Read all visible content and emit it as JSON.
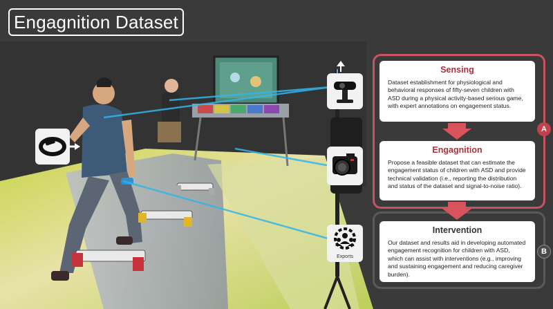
{
  "title": "Engagnition Dataset",
  "icons": {
    "wearable": "wristband-icon",
    "webcam": "webcam-icon",
    "camera": "camera-icon",
    "experts": "experts-icon",
    "experts_label": "Exports"
  },
  "panels": [
    {
      "heading": "Sensing",
      "text": "Dataset establishment for physiological and behavioral responses of fifty-seven children with ASD during a physical activity-based serious game, with expert annotations on engagement status.",
      "color": "#a8333d"
    },
    {
      "heading": "Engagnition",
      "text": "Propose a feasible dataset that can estimate the engagement status of children with ASD and provide technical validation (i.e., reporting the distribution and status of the dataset and signal-to-noise ratio).",
      "color": "#a8333d"
    },
    {
      "heading": "Intervention",
      "text": "Our dataset and results aid in developing automated engagement recognition for children with ASD, which can assist with interventions (e.g., improving and sustaining engagement and reducing caregiver burden).",
      "color": "#333333"
    }
  ],
  "badges": {
    "a": "A",
    "b": "B"
  },
  "colors": {
    "sensing_frame": "#c8545f",
    "intervention_frame": "#5a5a5a",
    "arrow": "#d9535c",
    "badge_a": "#c0424d",
    "badge_b": "#4a4a4a",
    "sight_line": "#33b5e8"
  }
}
